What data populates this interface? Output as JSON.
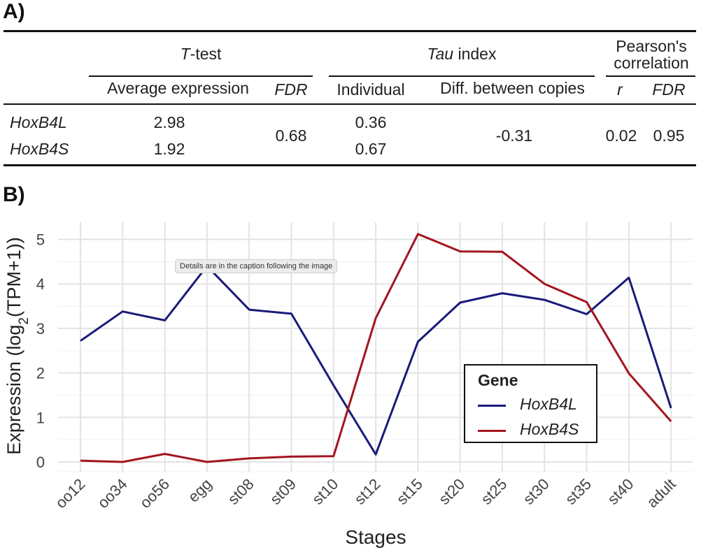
{
  "panel_a": {
    "label": "A)",
    "groups": {
      "ttest_prefix": "T",
      "ttest_suffix": "-test",
      "tau_prefix": "Tau",
      "tau_suffix": " index",
      "pearson_line1": "Pearson's",
      "pearson_line2": "correlation"
    },
    "subheaders": {
      "avg_expr": "Average expression",
      "fdr1": "FDR",
      "individual": "Individual",
      "diff": "Diff. between copies",
      "r": "r",
      "fdr2": "FDR"
    },
    "rows": [
      {
        "gene": "HoxB4L",
        "avg": "2.98",
        "tau": "0.36"
      },
      {
        "gene": "HoxB4S",
        "avg": "1.92",
        "tau": "0.67"
      }
    ],
    "shared": {
      "fdr": "0.68",
      "diff": "-0.31",
      "r": "0.02",
      "fdr2": "0.95"
    }
  },
  "panel_b": {
    "label": "B)",
    "tooltip": "Details are in the caption following the image",
    "legend_title": "Gene"
  },
  "colors": {
    "HoxB4L": "#1a1a7a",
    "HoxB4S": "#a3151f"
  },
  "chart_data": {
    "type": "line",
    "xlabel": "Stages",
    "ylabel_prefix": "Expression (log",
    "ylabel_sub": "2",
    "ylabel_suffix": "(TPM+1))",
    "categories": [
      "oo12",
      "oo34",
      "oo56",
      "egg",
      "st08",
      "st09",
      "st10",
      "st12",
      "st15",
      "st20",
      "st25",
      "st30",
      "st35",
      "st40",
      "adult"
    ],
    "ylim": [
      -0.2,
      5.3
    ],
    "yticks": [
      0,
      1,
      2,
      3,
      4,
      5
    ],
    "grid": true,
    "legend_position": "bottom-right",
    "series": [
      {
        "name": "HoxB4L",
        "values": [
          2.72,
          3.38,
          3.18,
          4.4,
          3.42,
          3.33,
          1.72,
          0.17,
          2.7,
          3.58,
          3.79,
          3.64,
          3.32,
          4.14,
          1.21
        ]
      },
      {
        "name": "HoxB4S",
        "values": [
          0.03,
          0.0,
          0.18,
          0.0,
          0.08,
          0.12,
          0.13,
          3.23,
          5.12,
          4.73,
          4.72,
          4.0,
          3.59,
          1.99,
          0.91
        ]
      }
    ]
  }
}
